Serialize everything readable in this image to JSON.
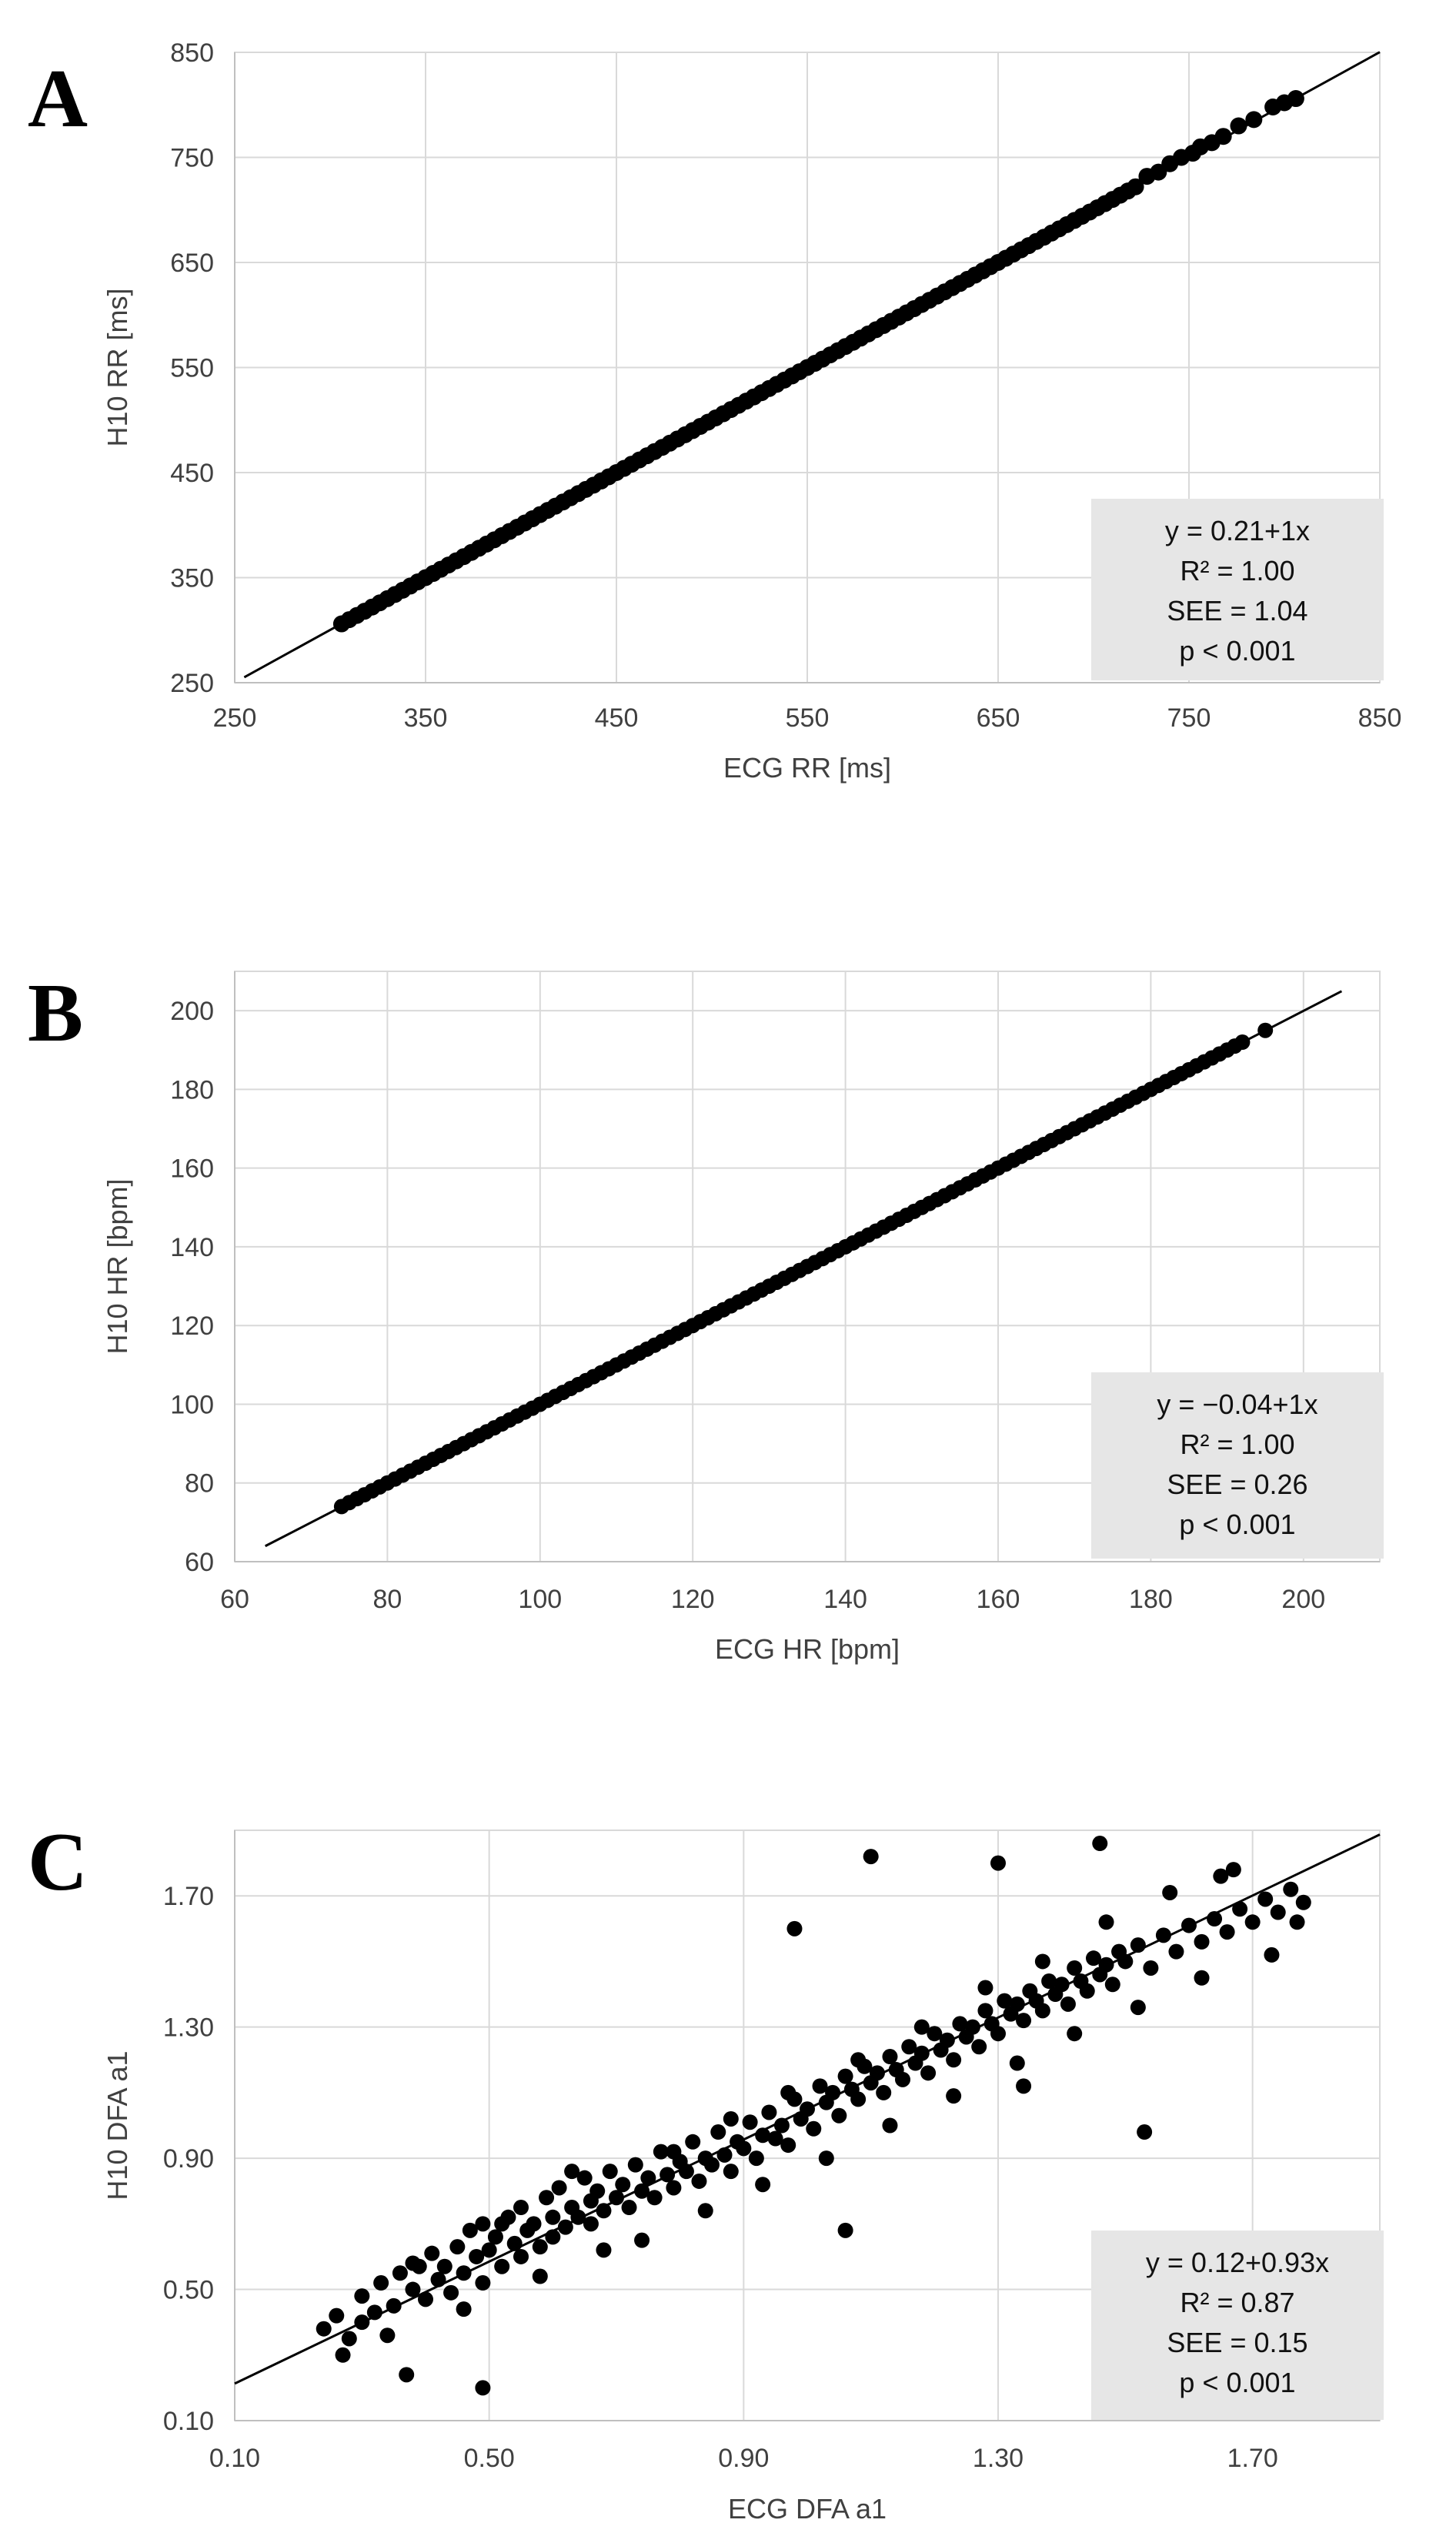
{
  "chart_data": [
    {
      "type": "scatter",
      "panel": "A",
      "xlabel": "ECG RR [ms]",
      "ylabel": "H10 RR [ms]",
      "xlim": [
        250,
        850
      ],
      "ylim": [
        250,
        850
      ],
      "xticks": [
        250,
        350,
        450,
        550,
        650,
        750,
        850
      ],
      "yticks": [
        250,
        350,
        450,
        550,
        650,
        750,
        850
      ],
      "tick_labels_x": [
        "250",
        "350",
        "450",
        "550",
        "650",
        "750",
        "850"
      ],
      "tick_labels_y": [
        "250",
        "350",
        "450",
        "550",
        "650",
        "750",
        "850"
      ],
      "grid": true,
      "regression": {
        "intercept": 0.21,
        "slope": 1.0,
        "x_range": [
          255,
          850
        ]
      },
      "stats": [
        "y = 0.21+1x",
        "R² = 1.00",
        "SEE = 1.04",
        "p < 0.001"
      ],
      "stats_position": "bottom-right",
      "x": [
        306,
        310,
        314,
        318,
        322,
        326,
        330,
        334,
        338,
        342,
        346,
        350,
        354,
        358,
        362,
        366,
        370,
        374,
        378,
        382,
        386,
        390,
        394,
        398,
        402,
        406,
        410,
        414,
        418,
        422,
        426,
        430,
        434,
        438,
        442,
        446,
        450,
        454,
        458,
        462,
        466,
        470,
        474,
        478,
        482,
        486,
        490,
        494,
        498,
        502,
        506,
        510,
        514,
        518,
        522,
        526,
        530,
        534,
        538,
        542,
        546,
        550,
        554,
        558,
        562,
        566,
        570,
        574,
        578,
        582,
        586,
        590,
        594,
        598,
        602,
        606,
        610,
        614,
        618,
        622,
        626,
        630,
        634,
        638,
        642,
        646,
        650,
        654,
        658,
        662,
        666,
        670,
        674,
        678,
        682,
        686,
        690,
        694,
        698,
        702,
        706,
        710,
        714,
        718,
        722,
        728,
        734,
        740,
        746,
        752,
        756,
        762,
        768,
        776,
        784,
        794,
        800,
        806
      ],
      "y": [
        306,
        310,
        314,
        318,
        322,
        326,
        330,
        334,
        338,
        342,
        346,
        350,
        354,
        358,
        362,
        366,
        370,
        374,
        378,
        382,
        386,
        390,
        394,
        398,
        402,
        406,
        410,
        414,
        418,
        422,
        426,
        430,
        434,
        438,
        442,
        446,
        450,
        454,
        458,
        462,
        466,
        470,
        474,
        478,
        482,
        486,
        490,
        494,
        498,
        502,
        506,
        510,
        514,
        518,
        522,
        526,
        530,
        534,
        538,
        542,
        546,
        550,
        554,
        558,
        562,
        566,
        570,
        574,
        578,
        582,
        586,
        590,
        594,
        598,
        602,
        606,
        610,
        614,
        618,
        622,
        626,
        630,
        634,
        638,
        642,
        646,
        650,
        654,
        658,
        662,
        666,
        670,
        674,
        678,
        682,
        686,
        690,
        694,
        698,
        702,
        706,
        710,
        714,
        718,
        722,
        732,
        736,
        744,
        750,
        754,
        760,
        764,
        770,
        780,
        786,
        798,
        802,
        806
      ]
    },
    {
      "type": "scatter",
      "panel": "B",
      "xlabel": "ECG HR [bpm]",
      "ylabel": "H10 HR [bpm]",
      "xlim": [
        60,
        210
      ],
      "ylim": [
        60,
        210
      ],
      "xticks": [
        60,
        80,
        100,
        120,
        140,
        160,
        180,
        200
      ],
      "yticks": [
        60,
        80,
        100,
        120,
        140,
        160,
        180,
        200
      ],
      "tick_labels_x": [
        "60",
        "80",
        "100",
        "120",
        "140",
        "160",
        "180",
        "200"
      ],
      "tick_labels_y": [
        "60",
        "80",
        "100",
        "120",
        "140",
        "160",
        "180",
        "200"
      ],
      "grid": true,
      "regression": {
        "intercept": -0.04,
        "slope": 1.0,
        "x_range": [
          64,
          205
        ]
      },
      "stats": [
        "y = −0.04+1x",
        "R² = 1.00",
        "SEE = 0.26",
        "p < 0.001"
      ],
      "stats_position": "bottom-right",
      "x": [
        74,
        75,
        76,
        77,
        78,
        79,
        80,
        81,
        82,
        83,
        84,
        85,
        86,
        87,
        88,
        89,
        90,
        91,
        92,
        93,
        94,
        95,
        96,
        97,
        98,
        99,
        100,
        101,
        102,
        103,
        104,
        105,
        106,
        107,
        108,
        109,
        110,
        111,
        112,
        113,
        114,
        115,
        116,
        117,
        118,
        119,
        120,
        121,
        122,
        123,
        124,
        125,
        126,
        127,
        128,
        129,
        130,
        131,
        132,
        133,
        134,
        135,
        136,
        137,
        138,
        139,
        140,
        141,
        142,
        143,
        144,
        145,
        146,
        147,
        148,
        149,
        150,
        151,
        152,
        153,
        154,
        155,
        156,
        157,
        158,
        159,
        160,
        161,
        162,
        163,
        164,
        165,
        166,
        167,
        168,
        169,
        170,
        171,
        172,
        173,
        174,
        175,
        176,
        177,
        178,
        179,
        180,
        181,
        182,
        183,
        184,
        185,
        186,
        187,
        188,
        189,
        190,
        191,
        192,
        195
      ],
      "y": [
        74,
        75,
        76,
        77,
        78,
        79,
        80,
        81,
        82,
        83,
        84,
        85,
        86,
        87,
        88,
        89,
        90,
        91,
        92,
        93,
        94,
        95,
        96,
        97,
        98,
        99,
        100,
        101,
        102,
        103,
        104,
        105,
        106,
        107,
        108,
        109,
        110,
        111,
        112,
        113,
        114,
        115,
        116,
        117,
        118,
        119,
        120,
        121,
        122,
        123,
        124,
        125,
        126,
        127,
        128,
        129,
        130,
        131,
        132,
        133,
        134,
        135,
        136,
        137,
        138,
        139,
        140,
        141,
        142,
        143,
        144,
        145,
        146,
        147,
        148,
        149,
        150,
        151,
        152,
        153,
        154,
        155,
        156,
        157,
        158,
        159,
        160,
        161,
        162,
        163,
        164,
        165,
        166,
        167,
        168,
        169,
        170,
        171,
        172,
        173,
        174,
        175,
        176,
        177,
        178,
        179,
        180,
        181,
        182,
        183,
        184,
        185,
        186,
        187,
        188,
        189,
        190,
        191,
        192,
        195
      ]
    },
    {
      "type": "scatter",
      "panel": "C",
      "xlabel": "ECG DFA a1",
      "ylabel": "H10 DFA a1",
      "xlim": [
        0.1,
        1.9
      ],
      "ylim": [
        0.1,
        1.9
      ],
      "xticks": [
        0.1,
        0.5,
        0.9,
        1.3,
        1.7
      ],
      "yticks": [
        0.1,
        0.5,
        0.9,
        1.3,
        1.7
      ],
      "tick_labels_x": [
        "0.10",
        "0.50",
        "0.90",
        "1.30",
        "1.70"
      ],
      "tick_labels_y": [
        "0.10",
        "0.50",
        "0.90",
        "1.30",
        "1.70"
      ],
      "grid": true,
      "regression": {
        "intercept": 0.12,
        "slope": 0.93,
        "x_range": [
          0.1,
          1.9
        ]
      },
      "stats": [
        "y = 0.12+0.93x",
        "R² = 0.87",
        "SEE = 0.15",
        "p < 0.001"
      ],
      "stats_position": "bottom-right",
      "x": [
        0.24,
        0.26,
        0.28,
        0.3,
        0.3,
        0.32,
        0.33,
        0.35,
        0.36,
        0.38,
        0.38,
        0.4,
        0.41,
        0.42,
        0.43,
        0.44,
        0.45,
        0.46,
        0.47,
        0.48,
        0.49,
        0.49,
        0.5,
        0.51,
        0.52,
        0.53,
        0.54,
        0.55,
        0.55,
        0.56,
        0.57,
        0.58,
        0.59,
        0.6,
        0.6,
        0.61,
        0.62,
        0.63,
        0.64,
        0.65,
        0.66,
        0.66,
        0.67,
        0.68,
        0.69,
        0.7,
        0.71,
        0.72,
        0.73,
        0.74,
        0.75,
        0.76,
        0.77,
        0.78,
        0.79,
        0.8,
        0.81,
        0.82,
        0.83,
        0.84,
        0.85,
        0.86,
        0.87,
        0.88,
        0.89,
        0.9,
        0.91,
        0.92,
        0.93,
        0.94,
        0.95,
        0.96,
        0.97,
        0.98,
        0.99,
        1.0,
        1.01,
        1.02,
        1.03,
        1.04,
        1.05,
        1.06,
        1.07,
        1.08,
        1.09,
        1.1,
        1.11,
        1.12,
        1.13,
        1.14,
        1.15,
        1.16,
        1.17,
        1.18,
        1.19,
        1.2,
        1.21,
        1.22,
        1.23,
        1.24,
        1.25,
        1.26,
        1.27,
        1.28,
        1.29,
        1.3,
        1.31,
        1.32,
        1.33,
        1.34,
        1.35,
        1.36,
        1.37,
        1.38,
        1.39,
        1.4,
        1.41,
        1.42,
        1.43,
        1.44,
        1.45,
        1.46,
        1.47,
        1.48,
        1.49,
        1.5,
        1.52,
        1.54,
        1.56,
        1.58,
        1.6,
        1.62,
        1.64,
        1.66,
        1.68,
        1.7,
        1.72,
        1.74,
        1.76,
        1.78,
        0.27,
        0.34,
        0.39,
        0.46,
        0.52,
        0.58,
        0.63,
        0.68,
        0.74,
        0.79,
        0.84,
        0.88,
        0.93,
        0.97,
        1.03,
        1.08,
        1.13,
        1.18,
        1.23,
        1.28,
        1.33,
        1.37,
        1.42,
        1.47,
        1.52,
        1.57,
        1.62,
        1.67,
        1.73,
        1.77,
        0.49,
        0.37,
        1.1,
        1.06,
        1.3,
        1.53,
        1.46,
        1.65,
        1.34,
        0.98
      ],
      "y": [
        0.38,
        0.42,
        0.35,
        0.4,
        0.48,
        0.43,
        0.52,
        0.45,
        0.55,
        0.5,
        0.58,
        0.47,
        0.61,
        0.53,
        0.57,
        0.49,
        0.63,
        0.55,
        0.68,
        0.6,
        0.52,
        0.7,
        0.62,
        0.66,
        0.57,
        0.72,
        0.64,
        0.6,
        0.75,
        0.68,
        0.7,
        0.63,
        0.78,
        0.66,
        0.72,
        0.81,
        0.69,
        0.75,
        0.72,
        0.84,
        0.7,
        0.77,
        0.8,
        0.74,
        0.86,
        0.78,
        0.82,
        0.75,
        0.88,
        0.8,
        0.84,
        0.78,
        0.92,
        0.85,
        0.81,
        0.89,
        0.86,
        0.95,
        0.83,
        0.9,
        0.88,
        0.98,
        0.91,
        0.86,
        0.95,
        0.93,
        1.01,
        0.9,
        0.97,
        1.04,
        0.96,
        1.0,
        0.94,
        1.08,
        1.02,
        1.05,
        0.99,
        1.12,
        1.07,
        1.1,
        1.03,
        1.15,
        1.11,
        1.08,
        1.18,
        1.13,
        1.16,
        1.1,
        1.21,
        1.17,
        1.14,
        1.24,
        1.19,
        1.22,
        1.16,
        1.28,
        1.23,
        1.26,
        1.2,
        1.31,
        1.27,
        1.3,
        1.24,
        1.35,
        1.31,
        1.28,
        1.38,
        1.34,
        1.37,
        1.32,
        1.41,
        1.38,
        1.35,
        1.44,
        1.4,
        1.43,
        1.37,
        1.48,
        1.44,
        1.41,
        1.51,
        1.46,
        1.49,
        1.43,
        1.53,
        1.5,
        1.55,
        1.48,
        1.58,
        1.53,
        1.61,
        1.56,
        1.63,
        1.59,
        1.66,
        1.62,
        1.69,
        1.65,
        1.72,
        1.68,
        0.3,
        0.36,
        0.57,
        0.44,
        0.7,
        0.54,
        0.86,
        0.62,
        0.65,
        0.92,
        0.74,
        1.02,
        0.82,
        1.1,
        0.9,
        1.2,
        1.0,
        1.3,
        1.09,
        1.42,
        1.19,
        1.5,
        1.28,
        1.62,
        1.36,
        1.71,
        1.45,
        1.78,
        1.52,
        1.62,
        0.2,
        0.24,
        1.82,
        0.68,
        1.8,
        0.98,
        1.86,
        1.76,
        1.12,
        1.6
      ]
    }
  ]
}
